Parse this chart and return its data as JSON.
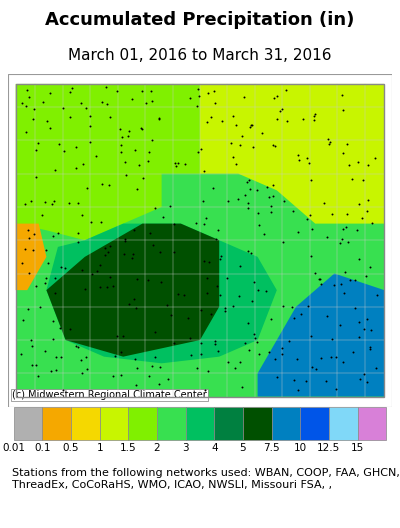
{
  "title": "Accumulated Precipitation (in)",
  "subtitle": "March 01, 2016 to March 31, 2016",
  "title_fontsize": 13,
  "subtitle_fontsize": 11,
  "colorbar_labels": [
    "0.01",
    "0.1",
    "0.5",
    "1",
    "1.5",
    "2",
    "3",
    "4",
    "5",
    "7.5",
    "10",
    "12.5",
    "15"
  ],
  "colorbar_colors": [
    "#b0b0b0",
    "#f5a800",
    "#f5d800",
    "#c8f500",
    "#80f000",
    "#38e050",
    "#00c060",
    "#008040",
    "#005000",
    "#0080c0",
    "#0055e8",
    "#80d8f8",
    "#d880d8"
  ],
  "footnote": "Stations from the following networks used: WBAN, COOP, FAA, GHCN,\nThreadEx, CoCoRaHS, WMO, ICAO, NWSLI, Missouri FSA, ,",
  "footnote_fontsize": 8,
  "copyright": "(c) Midwestern Regional Climate Center",
  "copyright_fontsize": 7,
  "background_color": "#ffffff",
  "map_bg_color": "#ffffff",
  "map_border_color": "#888888",
  "figsize": [
    4.0,
    5.28
  ],
  "dpi": 100
}
